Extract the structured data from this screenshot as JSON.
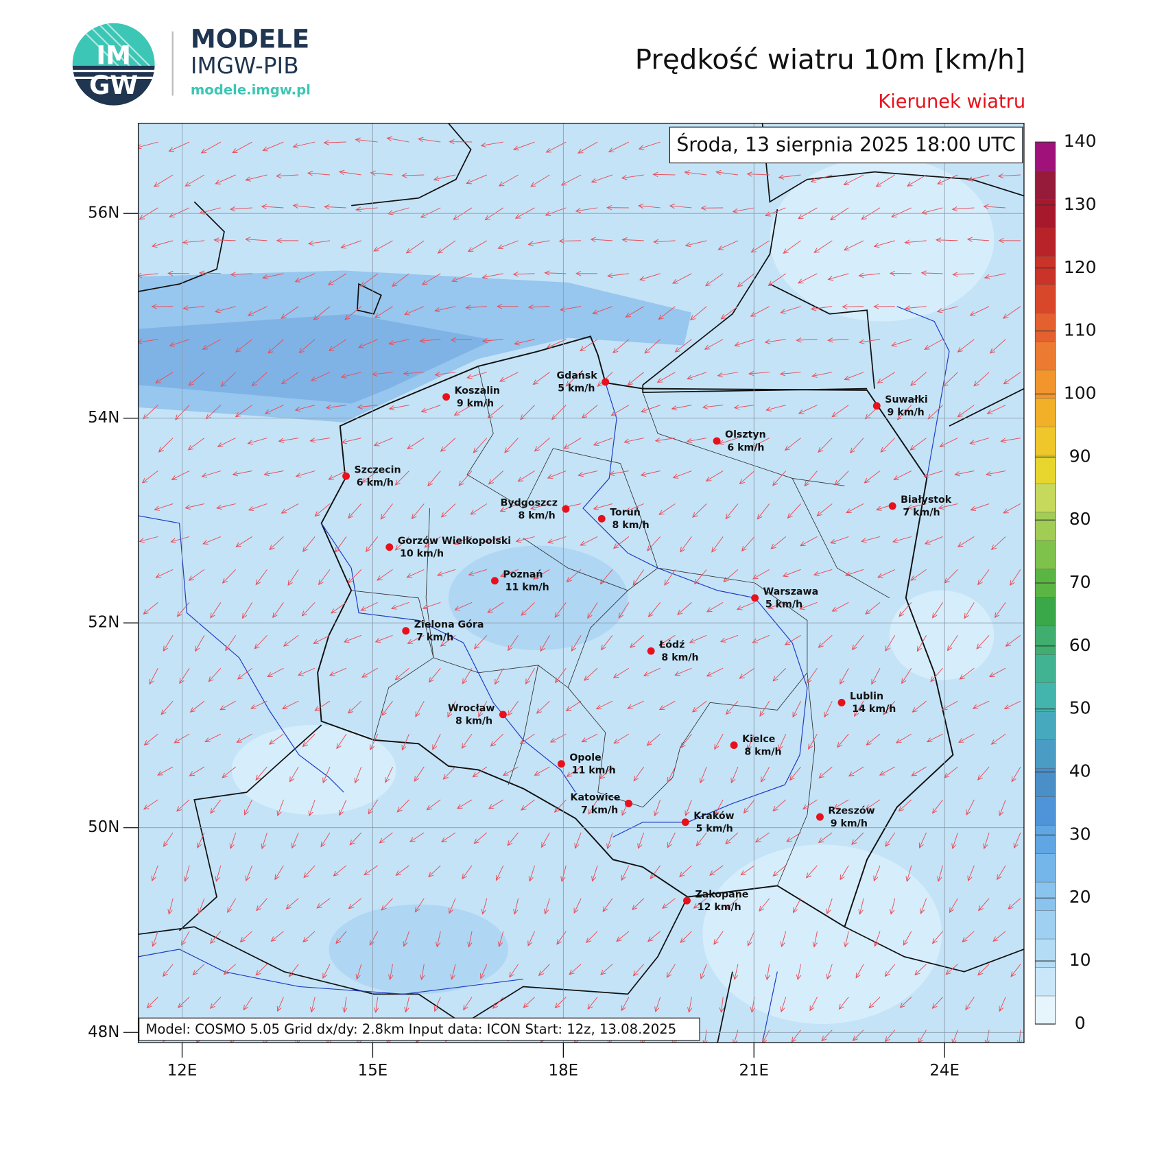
{
  "logo": {
    "badge_top": "IM",
    "badge_bottom": "GW",
    "name": "MODELE",
    "org": "IMGW-PIB",
    "url": "modele.imgw.pl"
  },
  "map": {
    "title": "Prędkość wiatru 10m [km/h]",
    "subtitle": "Kierunek wiatru",
    "valid_time": "Środa, 13 sierpnia 2025 18:00 UTC",
    "footer": "Model: COSMO 5.05  Grid dx/dy: 2.8km  Input data: ICON  Start: 12z, 13.08.2025",
    "xlim": [
      11.31,
      25.25
    ],
    "ylim": [
      47.9,
      56.88
    ],
    "xticks": [
      {
        "value": 12,
        "label": "12E"
      },
      {
        "value": 15,
        "label": "15E"
      },
      {
        "value": 18,
        "label": "18E"
      },
      {
        "value": 21,
        "label": "21E"
      },
      {
        "value": 24,
        "label": "24E"
      }
    ],
    "yticks": [
      {
        "value": 48,
        "label": "48N"
      },
      {
        "value": 50,
        "label": "50N"
      },
      {
        "value": 52,
        "label": "52N"
      },
      {
        "value": 54,
        "label": "54N"
      },
      {
        "value": 56,
        "label": "56N"
      }
    ],
    "cities": [
      {
        "name": "Koszalin",
        "speed": "9 km/h"
      },
      {
        "name": "Gdańsk",
        "speed": "5 km/h"
      },
      {
        "name": "Suwałki",
        "speed": "9 km/h"
      },
      {
        "name": "Olsztyn",
        "speed": "6 km/h"
      },
      {
        "name": "Szczecin",
        "speed": "6 km/h"
      },
      {
        "name": "Bydgoszcz",
        "speed": "8 km/h"
      },
      {
        "name": "Toruń",
        "speed": "8 km/h"
      },
      {
        "name": "Białystok",
        "speed": "7 km/h"
      },
      {
        "name": "Gorzów Wielkopolski",
        "speed": "10 km/h"
      },
      {
        "name": "Poznań",
        "speed": "11 km/h"
      },
      {
        "name": "Warszawa",
        "speed": "5 km/h"
      },
      {
        "name": "Zielona Góra",
        "speed": "7 km/h"
      },
      {
        "name": "Łódź",
        "speed": "8 km/h"
      },
      {
        "name": "Lublin",
        "speed": "14 km/h"
      },
      {
        "name": "Wrocław",
        "speed": "8 km/h"
      },
      {
        "name": "Kielce",
        "speed": "8 km/h"
      },
      {
        "name": "Opole",
        "speed": "11 km/h"
      },
      {
        "name": "Katowice",
        "speed": "7 km/h"
      },
      {
        "name": "Kraków",
        "speed": "5 km/h"
      },
      {
        "name": "Rzeszów",
        "speed": "9 km/h"
      },
      {
        "name": "Zakopane",
        "speed": "12 km/h"
      }
    ],
    "colorbar": {
      "lim": [
        0,
        140
      ],
      "ticks": [
        0,
        10,
        20,
        30,
        40,
        50,
        60,
        70,
        80,
        90,
        100,
        110,
        120,
        130,
        140
      ],
      "colors": [
        "#e6f4fc",
        "#c9e7f8",
        "#b4dcf5",
        "#9fd0f2",
        "#8ac4ee",
        "#74b6ea",
        "#5fa6e3",
        "#4f94d8",
        "#4a8fc8",
        "#4a9cc4",
        "#47a9bd",
        "#44b5ad",
        "#41b392",
        "#3fae6e",
        "#3aa848",
        "#5bb543",
        "#7ec24b",
        "#a2cd54",
        "#c6d95c",
        "#e8d62e",
        "#f0c72a",
        "#f1b028",
        "#f1952c",
        "#ec7a30",
        "#e4602e",
        "#d9472b",
        "#c93328",
        "#b8232a",
        "#a8182c",
        "#961a3a",
        "#a0127a"
      ]
    }
  }
}
